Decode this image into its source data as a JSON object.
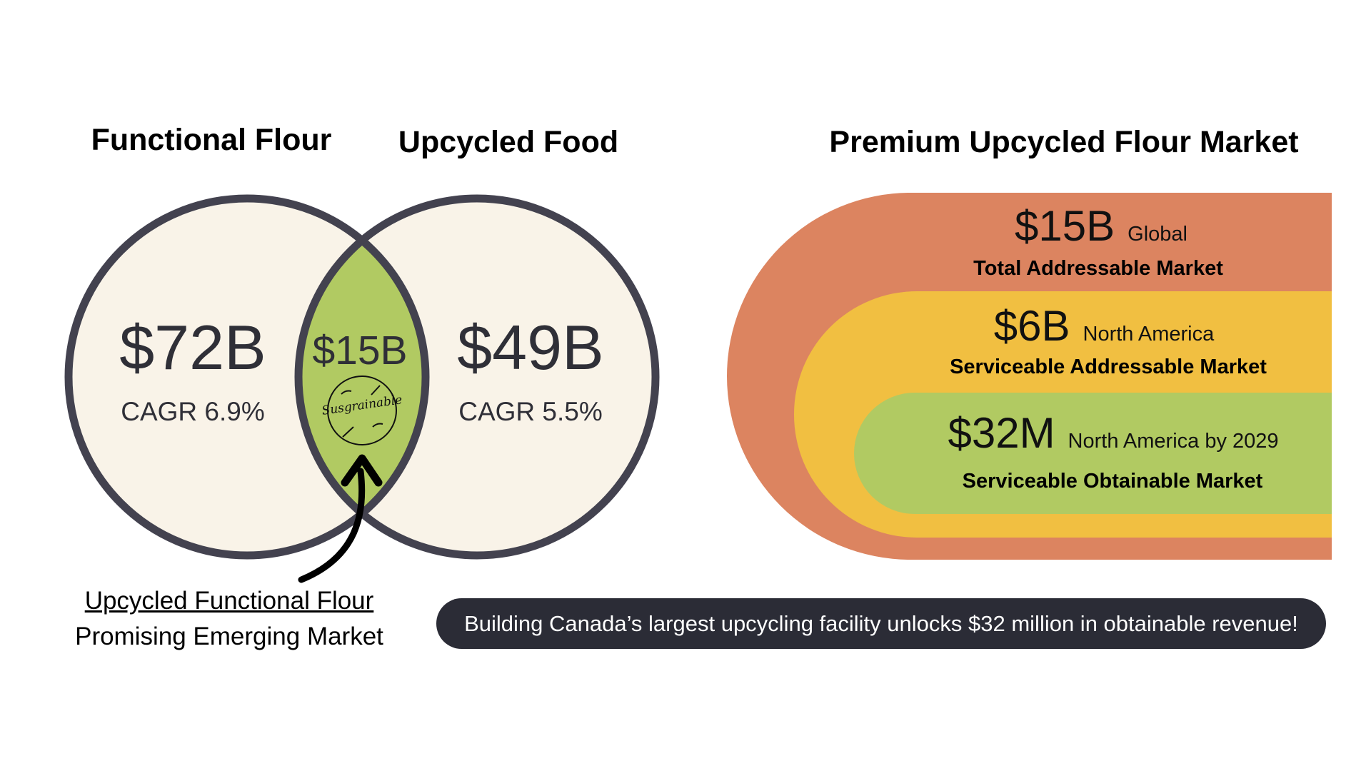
{
  "venn": {
    "left_circle": {
      "title": "Functional Flour",
      "value": "$72B",
      "cagr": "CAGR 6.9%"
    },
    "right_circle": {
      "title": "Upcycled Food",
      "value": "$49B",
      "cagr": "CAGR 5.5%"
    },
    "overlap": {
      "value": "$15B",
      "logo_text": "Susgrainable"
    },
    "caption": {
      "title": "Upcycled Functional Flour",
      "subtitle": "Promising Emerging Market"
    }
  },
  "market": {
    "title": "Premium Upcycled Flour Market",
    "tiers": [
      {
        "value": "$15B",
        "region": "Global",
        "label": "Total Addressable Market"
      },
      {
        "value": "$6B",
        "region": "North America",
        "label": "Serviceable Addressable Market"
      },
      {
        "value": "$32M",
        "region": "North America by 2029",
        "label": "Serviceable Obtainable Market"
      }
    ]
  },
  "banner": {
    "text": "Building Canada’s largest upcycling facility unlocks $32 million in obtainable revenue!"
  },
  "colors": {
    "circle_fill": "#f9f3e8",
    "circle_stroke": "#43424f",
    "overlap_fill": "#b1ca62",
    "tam": "#dc8460",
    "sam": "#f1bf41",
    "som": "#b1ca62",
    "banner_bg": "#2b2c36"
  }
}
